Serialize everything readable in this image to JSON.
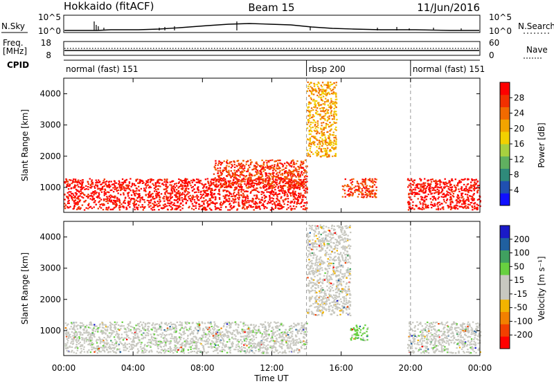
{
  "header": {
    "station": "Hokkaido (fitACF)",
    "beam": "Beam 15",
    "date": "11/Jun/2016"
  },
  "noise_panel": {
    "left_label": "N.Sky",
    "right_label": "N.Search",
    "left_ticks": [
      "10^5",
      "10^0"
    ],
    "right_ticks": [
      "10^5",
      "10^0"
    ]
  },
  "freq_panel": {
    "left_label_line1": "Freq.",
    "left_label_line2": "[MHz]",
    "left_ticks": [
      "18",
      "8"
    ],
    "right_label": "Nave",
    "right_ticks": [
      "60",
      "0"
    ]
  },
  "cpid": {
    "label": "CPID",
    "segments": [
      {
        "name": "normal (fast) 151",
        "start_hour": 0,
        "end_hour": 14
      },
      {
        "name": "rbsp 200",
        "start_hour": 14,
        "end_hour": 20
      },
      {
        "name": "normal (fast) 151",
        "start_hour": 20,
        "end_hour": 24
      }
    ]
  },
  "colors": {
    "power_scale": [
      "#1010ff",
      "#2050b0",
      "#2f8a7a",
      "#60b060",
      "#a8d040",
      "#f2d000",
      "#f2a400",
      "#f26a00",
      "#f23000",
      "#ff0000"
    ],
    "velocity_scale": [
      "#ff0000",
      "#f24000",
      "#f28000",
      "#f2b400",
      "#c8c8c0",
      "#c8c8c0",
      "#68d040",
      "#40a060",
      "#2060a0",
      "#1a1ac8"
    ]
  },
  "chart_data": [
    {
      "type": "heatmap",
      "panel": "power",
      "ylabel": "Slant Range [km]",
      "yticks": [
        1000,
        2000,
        3000,
        4000
      ],
      "ylim": [
        200,
        4500
      ],
      "xlim": [
        0,
        24
      ],
      "colorbar": {
        "label": "Power [dB]",
        "ticks": [
          "4",
          "8",
          "12",
          "16",
          "20",
          "24",
          "28"
        ],
        "range": [
          0,
          30
        ]
      },
      "features": [
        {
          "start_hour": 0,
          "end_hour": 14,
          "range_km": [
            300,
            1300
          ],
          "power_db": 28
        },
        {
          "start_hour": 8.6,
          "end_hour": 14,
          "range_km": [
            1000,
            1900
          ],
          "power_db": 26
        },
        {
          "start_hour": 14,
          "end_hour": 15.7,
          "range_km": [
            2000,
            4400
          ],
          "power_db": 18
        },
        {
          "start_hour": 16,
          "end_hour": 18,
          "range_km": [
            700,
            1300
          ],
          "power_db": 24
        },
        {
          "start_hour": 19.8,
          "end_hour": 24,
          "range_km": [
            300,
            1300
          ],
          "power_db": 27
        }
      ]
    },
    {
      "type": "heatmap",
      "panel": "velocity",
      "ylabel": "Slant Range [km]",
      "xlabel": "Time UT",
      "yticks": [
        1000,
        2000,
        3000,
        4000
      ],
      "ylim": [
        200,
        4500
      ],
      "xlim": [
        0,
        24
      ],
      "xticks": [
        "00:00",
        "04:00",
        "08:00",
        "12:00",
        "16:00",
        "20:00",
        "00:00"
      ],
      "colorbar": {
        "label": "Velocity [m s⁻¹]",
        "ticks": [
          "-200",
          "-100",
          "-50",
          "-15",
          "15",
          "50",
          "100",
          "200"
        ],
        "range": [
          -250,
          250
        ]
      },
      "features": [
        {
          "start_hour": 0,
          "end_hour": 14,
          "range_km": [
            300,
            1300
          ],
          "velocity_ms": 0
        },
        {
          "start_hour": 14,
          "end_hour": 16.5,
          "range_km": [
            1500,
            4400
          ],
          "velocity_ms": 0
        },
        {
          "start_hour": 16.5,
          "end_hour": 17.5,
          "range_km": [
            700,
            1200
          ],
          "velocity_ms": 25
        },
        {
          "start_hour": 19.8,
          "end_hour": 24,
          "range_km": [
            300,
            1300
          ],
          "velocity_ms": 0
        }
      ]
    }
  ]
}
